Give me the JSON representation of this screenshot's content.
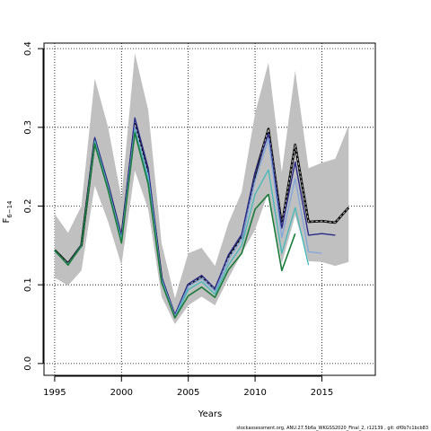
{
  "chart_data": {
    "type": "line",
    "xlabel": "Years",
    "ylabel_main": "F",
    "ylabel_sub": "6−14",
    "xlim": [
      1994.2,
      2019
    ],
    "ylim": [
      -0.015,
      0.407
    ],
    "xticks": [
      1995,
      2000,
      2005,
      2010,
      2015
    ],
    "xtick_labels": [
      "1995",
      "2000",
      "2005",
      "2010",
      "2015"
    ],
    "yticks": [
      0.0,
      0.1,
      0.2,
      0.3,
      0.4
    ],
    "ytick_labels": [
      "0.0",
      "0.1",
      "0.2",
      "0.3",
      "0.4"
    ],
    "grid": true,
    "footnote": "stockassessment.org, ANU.27.5b6a_WKGSS2020_Final_2, r12139 , git: df0b7c1bcb83",
    "band": {
      "x": [
        1995,
        1996,
        1997,
        1998,
        1999,
        2000,
        2001,
        2002,
        2003,
        2004,
        2005,
        2006,
        2007,
        2008,
        2009,
        2010,
        2011,
        2012,
        2013,
        2014,
        2015,
        2016,
        2017
      ],
      "upper": [
        0.19,
        0.166,
        0.2,
        0.362,
        0.3,
        0.21,
        0.394,
        0.322,
        0.153,
        0.083,
        0.14,
        0.147,
        0.124,
        0.178,
        0.218,
        0.318,
        0.382,
        0.243,
        0.372,
        0.248,
        0.255,
        0.26,
        0.302
      ],
      "lower": [
        0.109,
        0.099,
        0.118,
        0.226,
        0.18,
        0.125,
        0.245,
        0.196,
        0.085,
        0.05,
        0.074,
        0.085,
        0.074,
        0.108,
        0.14,
        0.17,
        0.218,
        0.127,
        0.188,
        0.13,
        0.129,
        0.124,
        0.129
      ]
    },
    "series": [
      {
        "color": "#000000",
        "width": 2.6,
        "dashed": false,
        "x": [
          1995,
          1996,
          1997,
          1998,
          1999,
          2000,
          2001,
          2002,
          2003,
          2004,
          2005,
          2006,
          2007,
          2008,
          2009,
          2010,
          2011,
          2012,
          2013,
          2014,
          2015,
          2016,
          2017
        ],
        "values": [
          0.144,
          0.127,
          0.15,
          0.284,
          0.226,
          0.16,
          0.304,
          0.24,
          0.108,
          0.06,
          0.1,
          0.11,
          0.094,
          0.134,
          0.16,
          0.24,
          0.298,
          0.175,
          0.278,
          0.18,
          0.181,
          0.179,
          0.198
        ]
      },
      {
        "color": "#bbbbbb",
        "width": 1,
        "dashed": true,
        "x": [
          1995,
          1996,
          1997,
          1998,
          1999,
          2000,
          2001,
          2002,
          2003,
          2004,
          2005,
          2006,
          2007,
          2008,
          2009,
          2010,
          2011,
          2012,
          2013,
          2014,
          2015,
          2016,
          2017
        ],
        "values": [
          0.144,
          0.127,
          0.15,
          0.284,
          0.226,
          0.16,
          0.304,
          0.24,
          0.108,
          0.06,
          0.1,
          0.11,
          0.094,
          0.134,
          0.16,
          0.24,
          0.298,
          0.175,
          0.278,
          0.18,
          0.181,
          0.179,
          0.198
        ]
      },
      {
        "color": "#2a2a8a",
        "width": 1.4,
        "dashed": false,
        "x": [
          1995,
          1996,
          1997,
          1998,
          1999,
          2000,
          2001,
          2002,
          2003,
          2004,
          2005,
          2006,
          2007,
          2008,
          2009,
          2010,
          2011,
          2012,
          2013,
          2014,
          2015,
          2016
        ],
        "values": [
          0.143,
          0.126,
          0.151,
          0.287,
          0.228,
          0.162,
          0.312,
          0.248,
          0.11,
          0.062,
          0.101,
          0.112,
          0.095,
          0.138,
          0.164,
          0.242,
          0.292,
          0.172,
          0.256,
          0.163,
          0.165,
          0.163
        ]
      },
      {
        "color": "#7fa6dc",
        "width": 1.3,
        "dashed": false,
        "x": [
          1995,
          1996,
          1997,
          1998,
          1999,
          2000,
          2001,
          2002,
          2003,
          2004,
          2005,
          2006,
          2007,
          2008,
          2009,
          2010,
          2011,
          2012,
          2013,
          2014,
          2015
        ],
        "values": [
          0.143,
          0.126,
          0.15,
          0.283,
          0.224,
          0.158,
          0.3,
          0.238,
          0.107,
          0.06,
          0.098,
          0.108,
          0.092,
          0.132,
          0.158,
          0.232,
          0.285,
          0.16,
          0.235,
          0.142,
          0.14
        ]
      },
      {
        "color": "#43b8b8",
        "width": 1.3,
        "dashed": false,
        "x": [
          1995,
          1996,
          1997,
          1998,
          1999,
          2000,
          2001,
          2002,
          2003,
          2004,
          2005,
          2006,
          2007,
          2008,
          2009,
          2010,
          2011,
          2012,
          2013,
          2014
        ],
        "values": [
          0.143,
          0.126,
          0.149,
          0.282,
          0.222,
          0.156,
          0.296,
          0.234,
          0.105,
          0.058,
          0.094,
          0.104,
          0.088,
          0.125,
          0.15,
          0.215,
          0.246,
          0.14,
          0.198,
          0.125
        ]
      },
      {
        "color": "#1a7a3a",
        "width": 1.6,
        "dashed": false,
        "x": [
          1995,
          1996,
          1997,
          1998,
          1999,
          2000,
          2001,
          2002,
          2003,
          2004,
          2005,
          2006,
          2007,
          2008,
          2009,
          2010,
          2011,
          2012,
          2013
        ],
        "values": [
          0.144,
          0.125,
          0.15,
          0.279,
          0.22,
          0.153,
          0.293,
          0.228,
          0.103,
          0.058,
          0.086,
          0.097,
          0.084,
          0.119,
          0.14,
          0.196,
          0.215,
          0.118,
          0.165
        ]
      }
    ]
  }
}
